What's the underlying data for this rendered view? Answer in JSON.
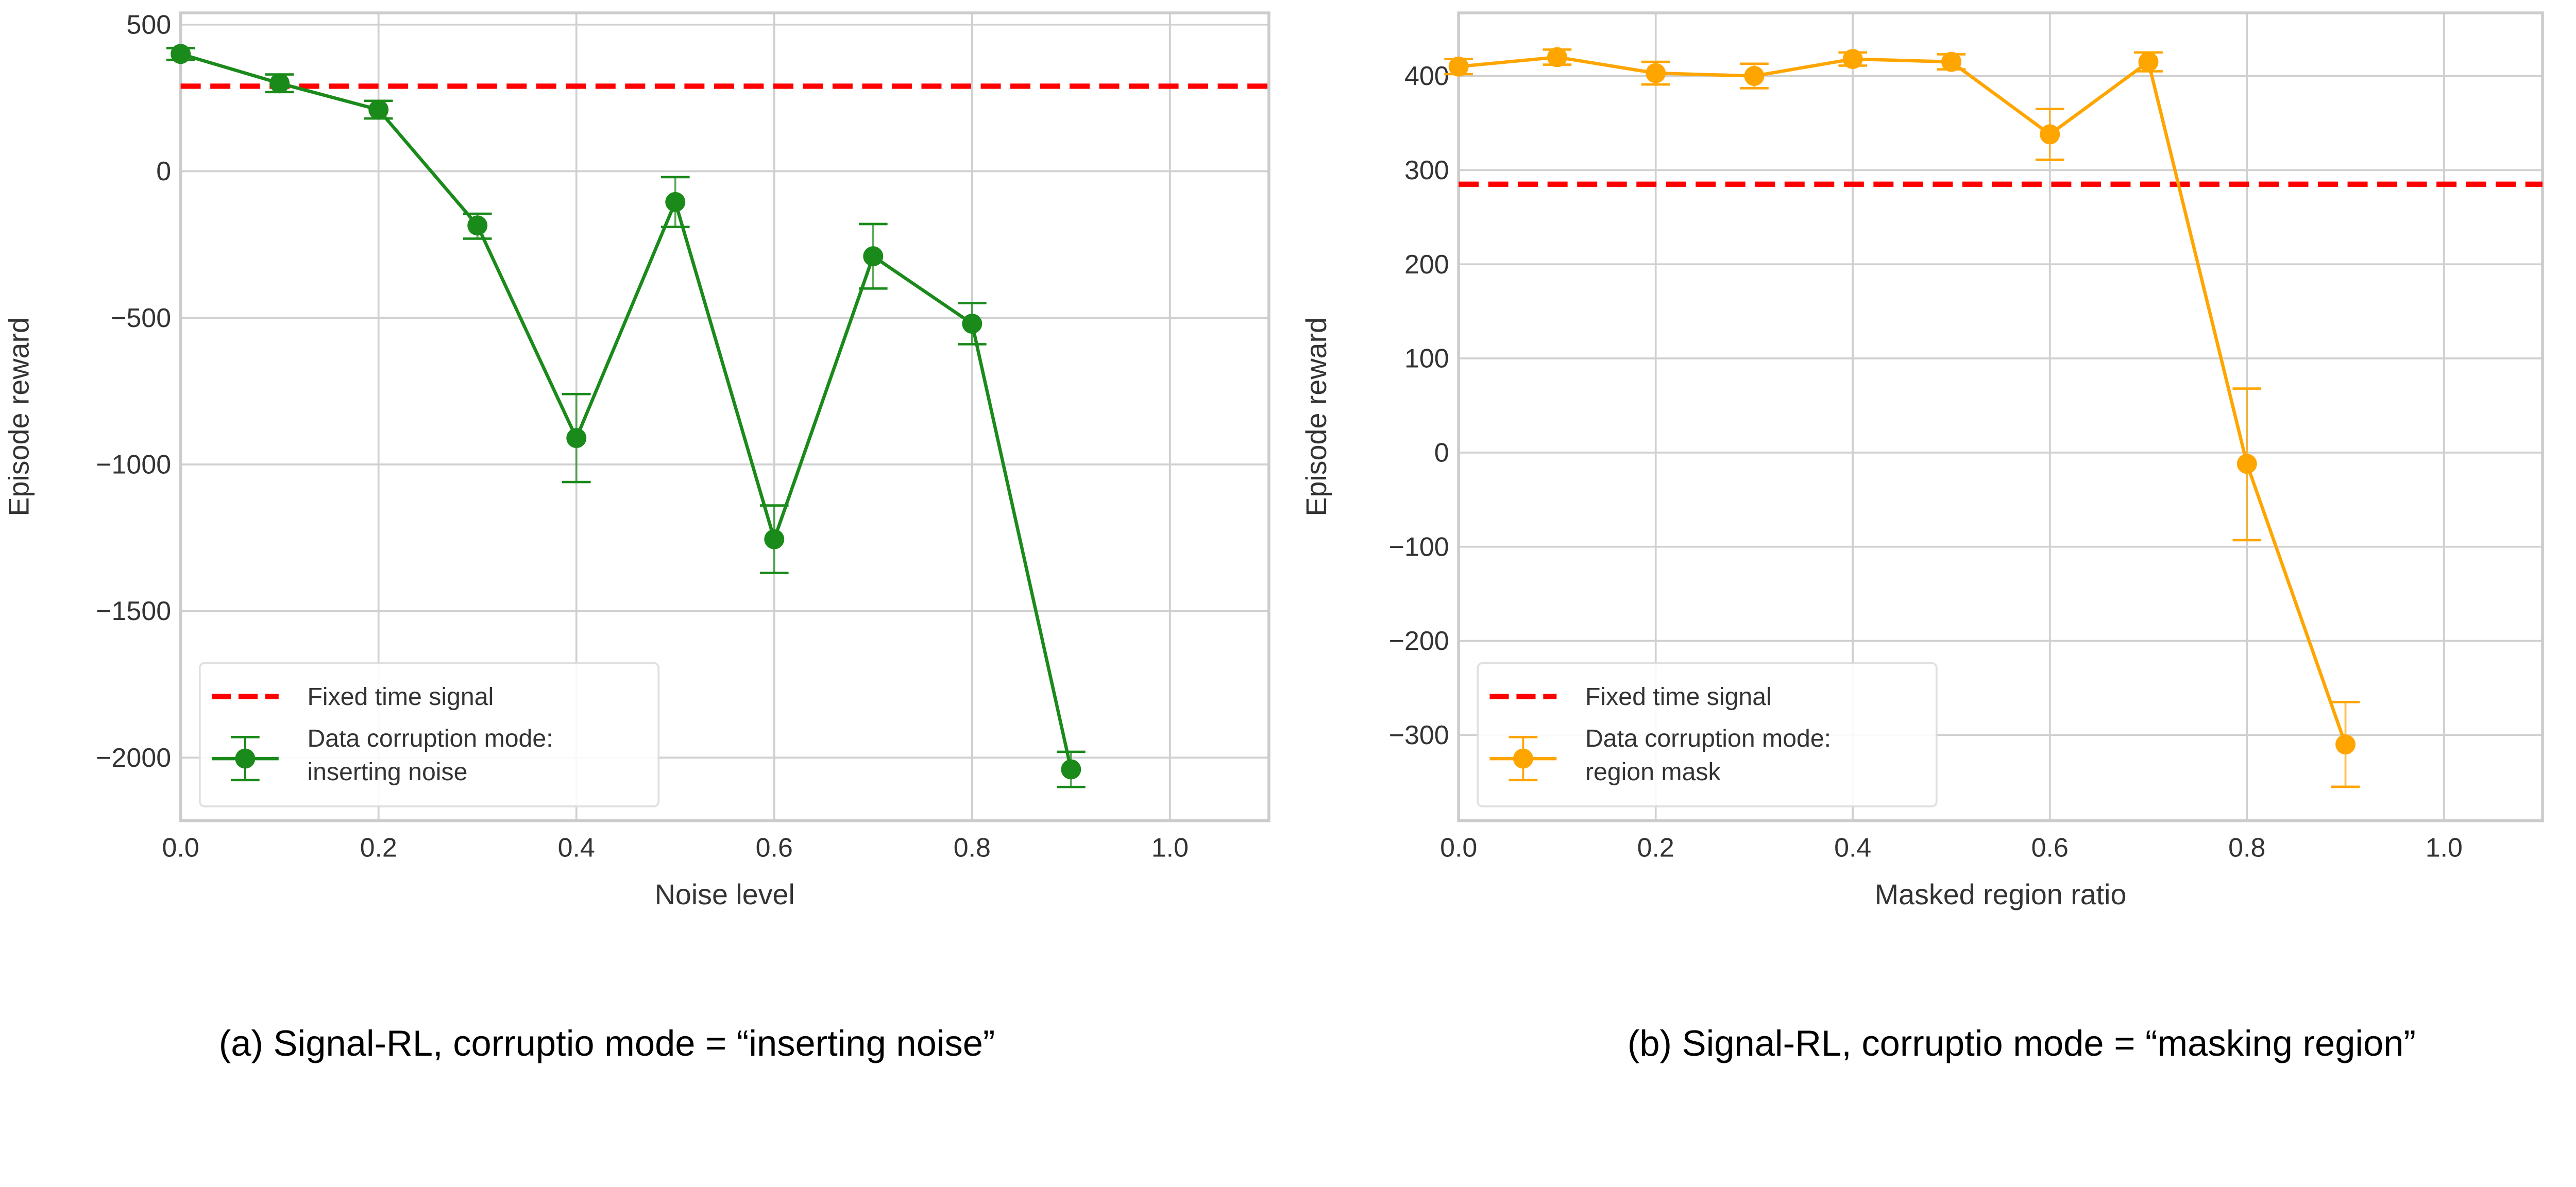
{
  "chart_data": [
    {
      "type": "line",
      "caption": "(a) Signal-RL, corruptio mode = “inserting noise”",
      "xlabel": "Noise level",
      "ylabel": "Episode reward",
      "xlim": [
        0,
        1.1
      ],
      "ylim": [
        -2215,
        540
      ],
      "xticks": [
        0,
        0.2,
        0.4,
        0.6,
        0.8,
        1.0
      ],
      "xtick_labels": [
        "0.0",
        "0.2",
        "0.4",
        "0.6",
        "0.8",
        "1.0"
      ],
      "yticks": [
        500,
        0,
        -500,
        -1000,
        -1500,
        -2000
      ],
      "ytick_labels": [
        "500",
        "0",
        "−500",
        "−1000",
        "−1500",
        "−2000"
      ],
      "grid": true,
      "legend_position": "lower-left",
      "baseline": {
        "name": "Fixed time signal",
        "value": 290,
        "color": "#ff0000"
      },
      "series": [
        {
          "name": "Data corruption mode: inserting noise",
          "legend_lines": [
            "Data corruption mode:",
            "inserting noise"
          ],
          "color": "#1a8a1a",
          "x": [
            0,
            0.1,
            0.2,
            0.3,
            0.4,
            0.5,
            0.6,
            0.7,
            0.8,
            0.9
          ],
          "y": [
            400,
            300,
            210,
            -185,
            -910,
            -105,
            -1255,
            -290,
            -520,
            -2040
          ],
          "err_low": [
            380,
            270,
            180,
            -230,
            -1060,
            -190,
            -1370,
            -400,
            -590,
            -2100
          ],
          "err_high": [
            420,
            330,
            240,
            -145,
            -760,
            -20,
            -1140,
            -180,
            -450,
            -1980
          ]
        }
      ]
    },
    {
      "type": "line",
      "caption": "(b) Signal-RL, corruptio mode = “masking region”",
      "xlabel": "Masked region ratio",
      "ylabel": "Episode reward",
      "xlim": [
        0,
        1.1
      ],
      "ylim": [
        -391,
        467
      ],
      "xticks": [
        0,
        0.2,
        0.4,
        0.6,
        0.8,
        1.0
      ],
      "xtick_labels": [
        "0.0",
        "0.2",
        "0.4",
        "0.6",
        "0.8",
        "1.0"
      ],
      "yticks": [
        400,
        300,
        200,
        100,
        0,
        -100,
        -200,
        -300
      ],
      "ytick_labels": [
        "400",
        "300",
        "200",
        "100",
        "0",
        "−100",
        "−200",
        "−300"
      ],
      "grid": true,
      "legend_position": "lower-left",
      "baseline": {
        "name": "Fixed time signal",
        "value": 285,
        "color": "#ff0000"
      },
      "series": [
        {
          "name": "Data corruption mode: region mask",
          "legend_lines": [
            "Data corruption mode:",
            "region mask"
          ],
          "color": "#ffa500",
          "x": [
            0,
            0.1,
            0.2,
            0.3,
            0.4,
            0.5,
            0.6,
            0.7,
            0.8,
            0.9
          ],
          "y": [
            410,
            420,
            403,
            400,
            418,
            415,
            338,
            415,
            -12,
            -310
          ],
          "err_low": [
            402,
            412,
            391,
            387,
            411,
            407,
            311,
            405,
            -93,
            -355
          ],
          "err_high": [
            418,
            428,
            415,
            413,
            425,
            423,
            365,
            425,
            68,
            -265
          ]
        }
      ]
    }
  ]
}
